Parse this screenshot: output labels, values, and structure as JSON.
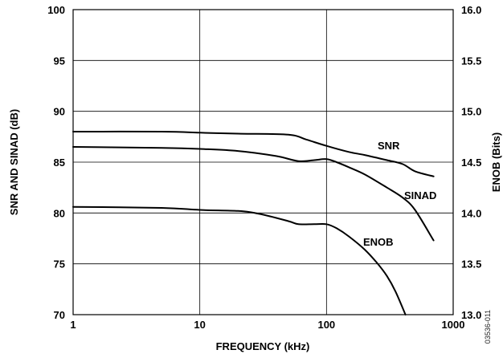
{
  "chart_data": {
    "type": "line",
    "x_scale": "log",
    "xlabel": "FREQUENCY (kHz)",
    "ylabel": "SNR AND SINAD (dB)",
    "y2label": "ENOB (Bits)",
    "xlim": [
      1,
      1000
    ],
    "ylim": [
      70,
      100
    ],
    "y2lim": [
      13.0,
      16.0
    ],
    "grid": true,
    "x_ticks": [
      "1",
      "10",
      "100",
      "1000"
    ],
    "y_ticks": [
      "70",
      "75",
      "80",
      "85",
      "90",
      "95",
      "100"
    ],
    "y2_ticks": [
      "13.0",
      "13.5",
      "14.0",
      "14.5",
      "15.0",
      "15.5",
      "16.0"
    ],
    "figure_id": "03536-011",
    "series": [
      {
        "name": "SNR",
        "axis": "left",
        "x": [
          1,
          5,
          10,
          20,
          50,
          70,
          100,
          150,
          200,
          300,
          400,
          500,
          700
        ],
        "y": [
          88.0,
          88.0,
          87.9,
          87.8,
          87.7,
          87.2,
          86.6,
          86.0,
          85.7,
          85.2,
          84.8,
          84.1,
          83.6
        ]
      },
      {
        "name": "SINAD",
        "axis": "left",
        "x": [
          1,
          5,
          10,
          20,
          40,
          60,
          80,
          100,
          120,
          150,
          200,
          300,
          400,
          500,
          700
        ],
        "y": [
          86.5,
          86.4,
          86.3,
          86.1,
          85.6,
          85.1,
          85.2,
          85.3,
          85.0,
          84.5,
          83.8,
          82.5,
          81.5,
          80.3,
          77.3
        ]
      },
      {
        "name": "ENOB",
        "axis": "right",
        "x": [
          1,
          5,
          10,
          20,
          30,
          50,
          60,
          80,
          100,
          120,
          150,
          200,
          250,
          300,
          350,
          420
        ],
        "y": [
          14.06,
          14.05,
          14.03,
          14.02,
          13.99,
          13.92,
          13.89,
          13.89,
          13.89,
          13.85,
          13.77,
          13.64,
          13.51,
          13.38,
          13.23,
          13.0
        ]
      }
    ]
  }
}
